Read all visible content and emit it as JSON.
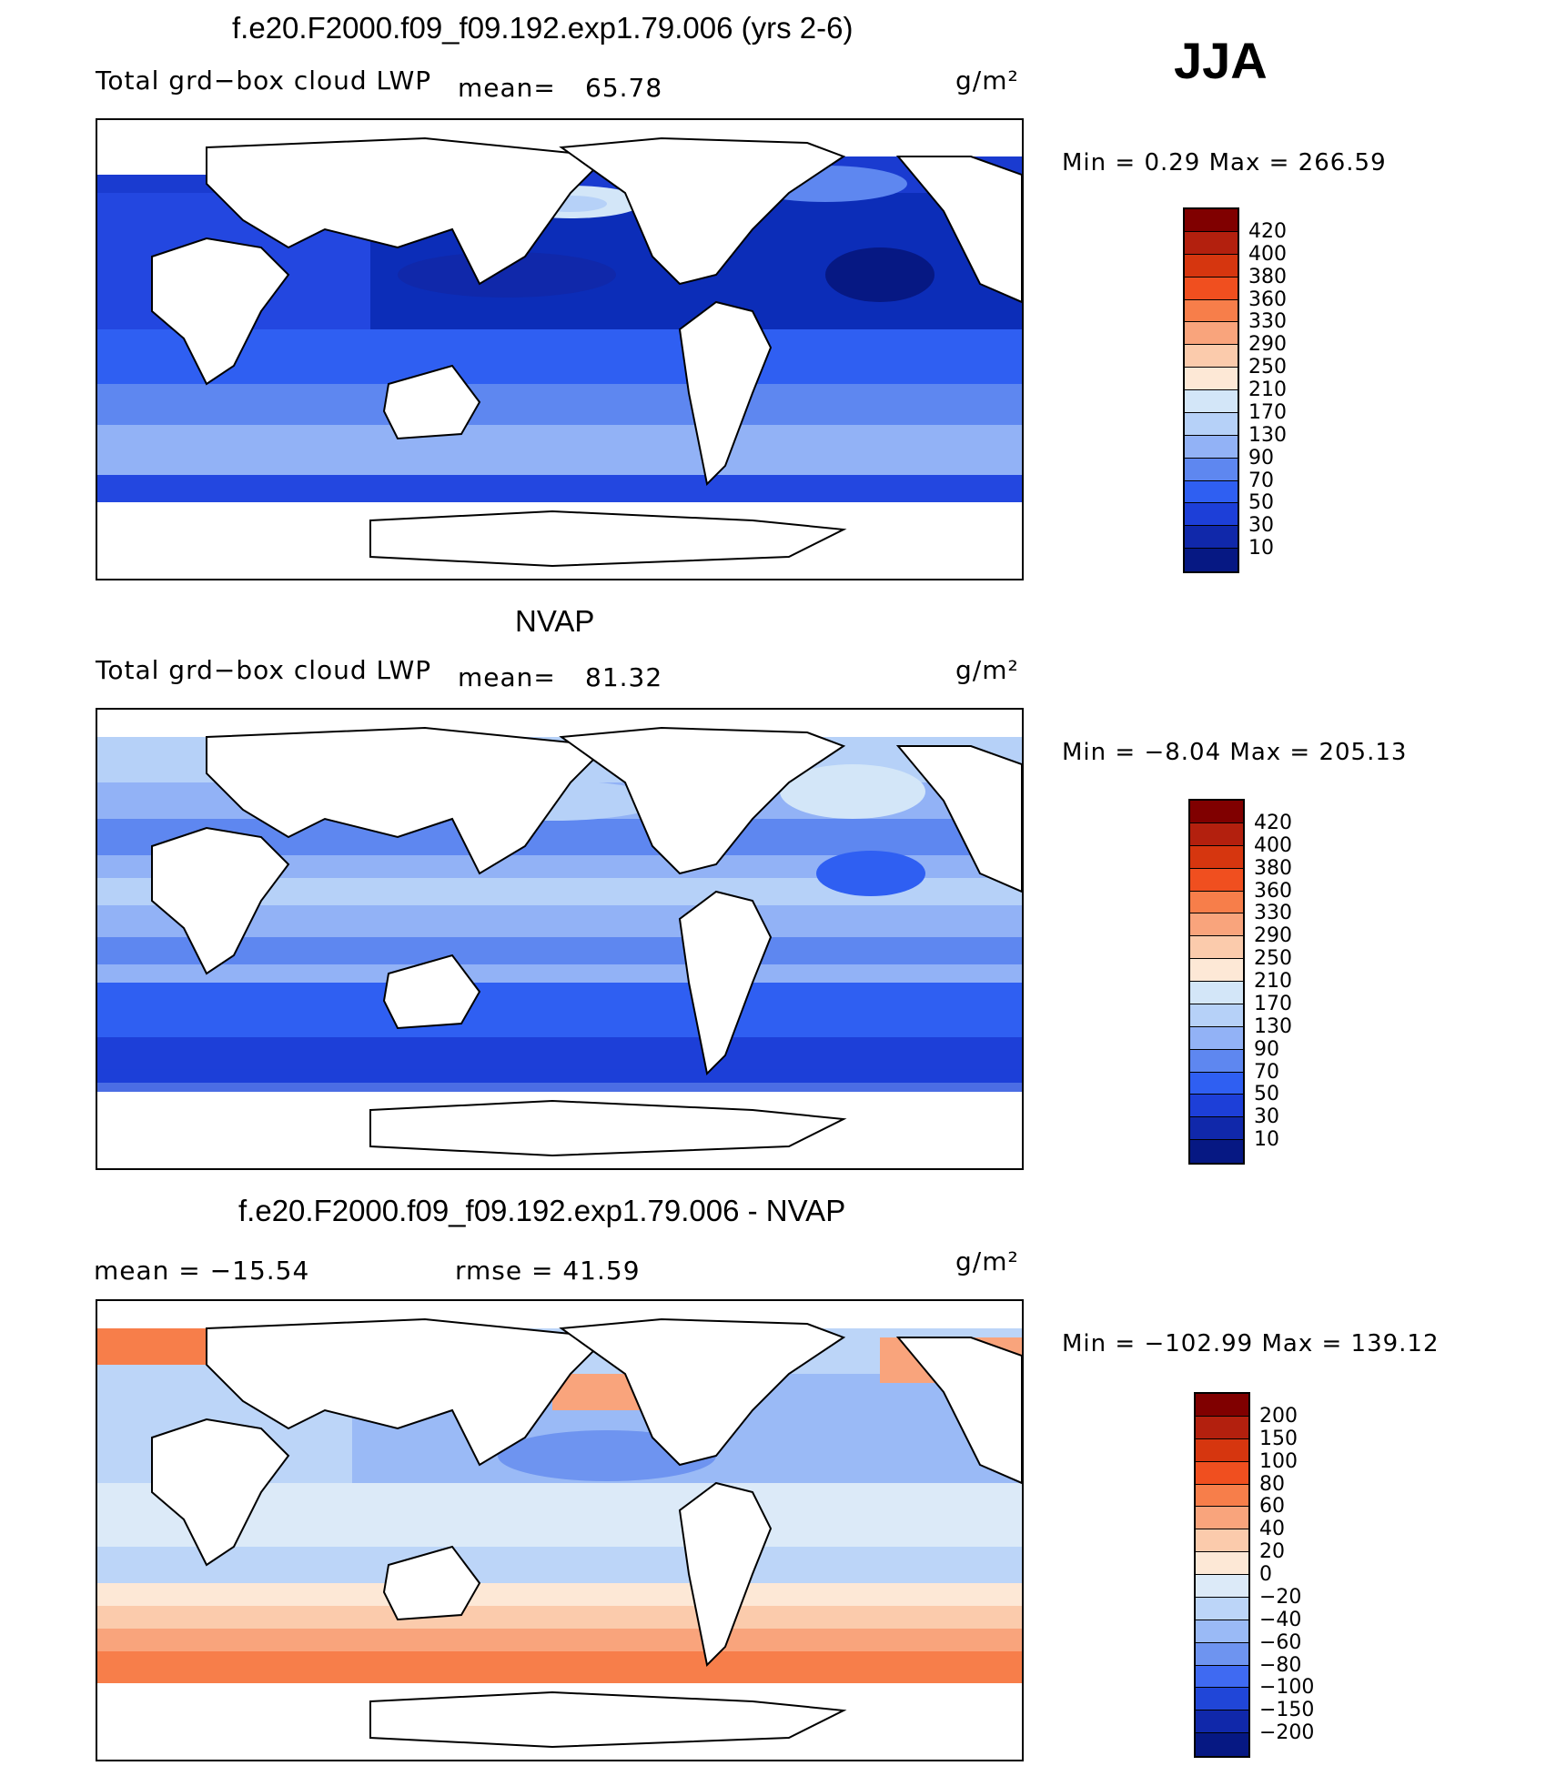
{
  "season": "JJA",
  "top": {
    "title": "f.e20.F2000.f09_f09.192.exp1.79.006 (yrs 2-6)",
    "variable": "Total grd−box cloud LWP",
    "mean_label": "mean=",
    "mean_value": "65.78",
    "units": "g/m²",
    "minmax": "Min =    0.29  Max  =  266.59"
  },
  "middle": {
    "title": "NVAP",
    "variable": "Total grd−box cloud LWP",
    "mean_label": "mean=",
    "mean_value": "81.32",
    "units": "g/m²",
    "minmax": "Min =   −8.04  Max  =  205.13"
  },
  "bottom": {
    "title": "f.e20.F2000.f09_f09.192.exp1.79.006 - NVAP",
    "mean_text": "mean  =  −15.54",
    "rmse_text": "rmse  =    41.59",
    "units": "g/m²",
    "minmax": "Min  = −102.99  Max  =  139.12"
  },
  "colorbars": {
    "absolute": {
      "labels": [
        "420",
        "400",
        "380",
        "360",
        "330",
        "290",
        "250",
        "210",
        "170",
        "130",
        "90",
        "70",
        "50",
        "30",
        "10"
      ],
      "colors": [
        "#800000",
        "#b3200e",
        "#d6360f",
        "#f04f1f",
        "#f77e4a",
        "#f9a47c",
        "#fbcbac",
        "#fde8d6",
        "#d3e6f8",
        "#b6d1f8",
        "#92b2f6",
        "#5e87f0",
        "#2f5ff2",
        "#1d3fd8",
        "#1028aa",
        "#061883"
      ]
    },
    "difference": {
      "labels": [
        "200",
        "150",
        "100",
        "80",
        "60",
        "40",
        "20",
        "0",
        "−20",
        "−40",
        "−60",
        "−80",
        "−100",
        "−150",
        "−200"
      ],
      "colors": [
        "#800000",
        "#b3200e",
        "#d6360f",
        "#f04f1f",
        "#f77e4a",
        "#f9a47c",
        "#fbcbac",
        "#fde8d6",
        "#dceaf8",
        "#bcd5f8",
        "#9abaf6",
        "#6e94f0",
        "#3f6af2",
        "#2046d8",
        "#1028aa",
        "#061883"
      ]
    }
  }
}
